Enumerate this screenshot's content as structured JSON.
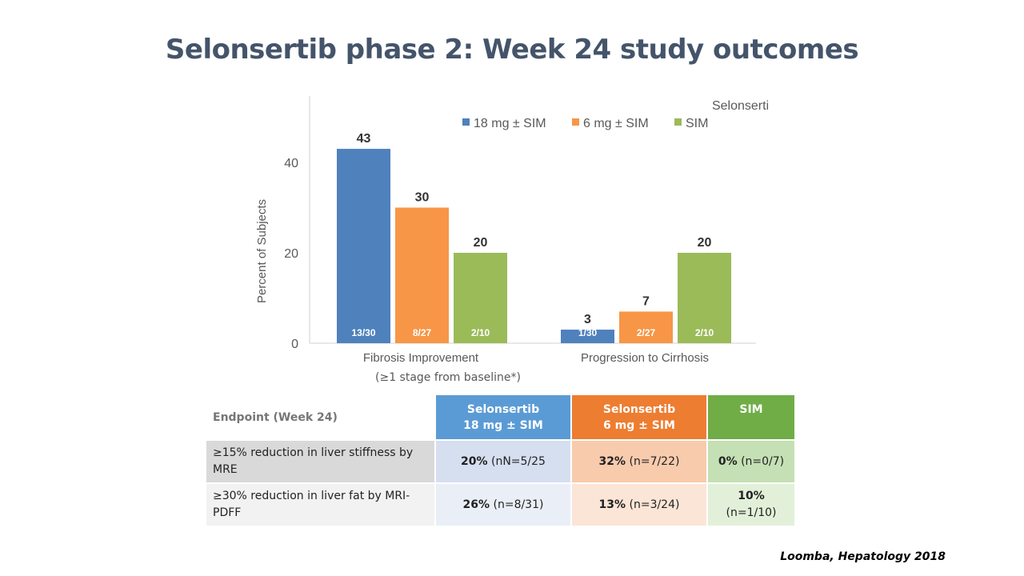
{
  "title": "Selonsertib phase 2: Week 24 study outcomes",
  "chart_data": {
    "type": "bar",
    "ylabel": "Percent of Subjects",
    "ylim": [
      0,
      45
    ],
    "yticks": [
      0,
      20,
      40
    ],
    "categories": [
      "Fibrosis Improvement",
      "Progression to Cirrhosis"
    ],
    "category_note": "(≥1 stage from baseline*)",
    "legend_position": "top-right",
    "series": [
      {
        "legend_top": "Selonsertib",
        "name": "18 mg ± SIM",
        "color": "#4f81bd",
        "values": [
          43,
          3
        ],
        "inner_labels": [
          "13/30",
          "1/30"
        ]
      },
      {
        "legend_top": "Selonsertib",
        "name": "6 mg ± SIM",
        "color": "#f79646",
        "values": [
          30,
          7
        ],
        "inner_labels": [
          "8/27",
          "2/27"
        ]
      },
      {
        "legend_top": "",
        "name": "SIM",
        "color": "#9bbb59",
        "values": [
          20,
          20
        ],
        "inner_labels": [
          "2/10",
          "2/10"
        ]
      }
    ]
  },
  "table": {
    "header_endpoint": "Endpoint (Week 24)",
    "col1": {
      "line1": "Selonsertib",
      "line2": "18 mg ± SIM"
    },
    "col2": {
      "line1": "Selonsertib",
      "line2": "6 mg ± SIM"
    },
    "col3": {
      "line1": "SIM"
    },
    "rows": [
      {
        "endpoint": "≥15% reduction in liver stiffness by MRE",
        "c1_pct": "20%",
        "c1_n": " (nN=5/25",
        "c2_pct": "32%",
        "c2_n": " (n=7/22)",
        "c3_pct": "0%",
        "c3_n": " (n=0/7)"
      },
      {
        "endpoint": "≥30% reduction in liver fat by MRI-PDFF",
        "c1_pct": "26%",
        "c1_n": " (n=8/31)",
        "c2_pct": "13%",
        "c2_n": " (n=3/24)",
        "c3_pct": "10%",
        "c3_n": "(n=1/10)"
      }
    ]
  },
  "citation": "Loomba, Hepatology 2018"
}
